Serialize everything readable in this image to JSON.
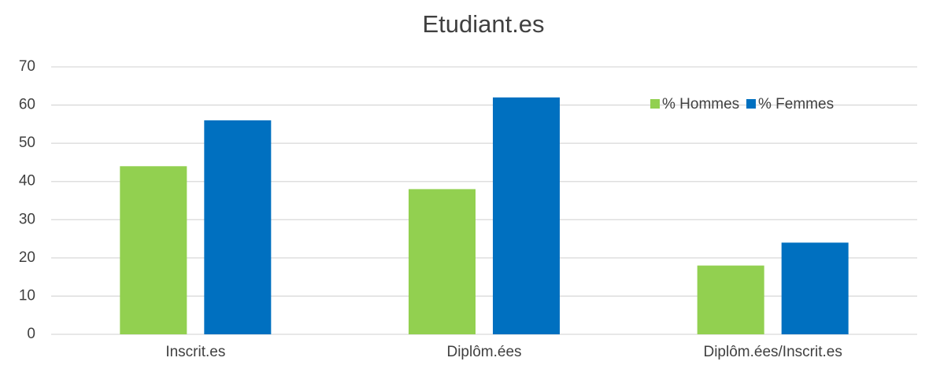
{
  "chart_data": {
    "type": "bar",
    "title": "Etudiant.es",
    "categories": [
      "Inscrit.es",
      "Diplôm.ées",
      "Diplôm.ées/Inscrit.es"
    ],
    "series": [
      {
        "name": "% Hommes",
        "color": "#92d050",
        "values": [
          44,
          38,
          18
        ]
      },
      {
        "name": "% Femmes",
        "color": "#0070c0",
        "values": [
          56,
          62,
          24
        ]
      }
    ],
    "ylim": [
      0,
      70
    ],
    "yticks": [
      0,
      10,
      20,
      30,
      40,
      50,
      60,
      70
    ],
    "grid": true,
    "legend": "upper right"
  }
}
